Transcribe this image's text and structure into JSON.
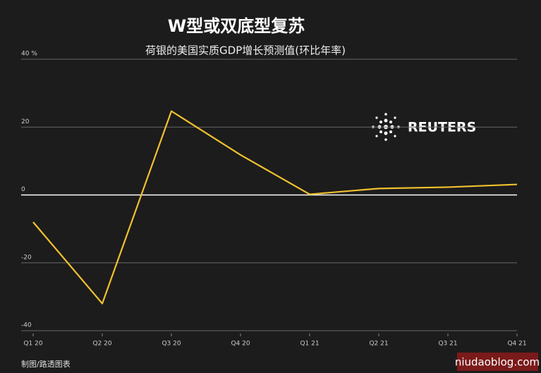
{
  "chart_data": {
    "type": "line",
    "title": "W型或双底型复苏",
    "subtitle": "荷银的美国实质GDP增长预测值(环比年率)",
    "source": "制图/路透图表",
    "logo": "REUTERS",
    "watermark": "niudaoblog.com",
    "categories": [
      "Q1 20",
      "Q2 20",
      "Q3 20",
      "Q4 20",
      "Q1 21",
      "Q2 21",
      "Q3 21",
      "Q4 21"
    ],
    "values": [
      -8,
      -32,
      24.7,
      11.8,
      0.2,
      1.9,
      2.3,
      3.1
    ],
    "color": "#f2c12e",
    "ylim": [
      -40,
      40
    ],
    "yticks": [
      -40,
      -20,
      0,
      20,
      {
        "value": 40,
        "label": "40 %"
      }
    ],
    "grid": true
  }
}
